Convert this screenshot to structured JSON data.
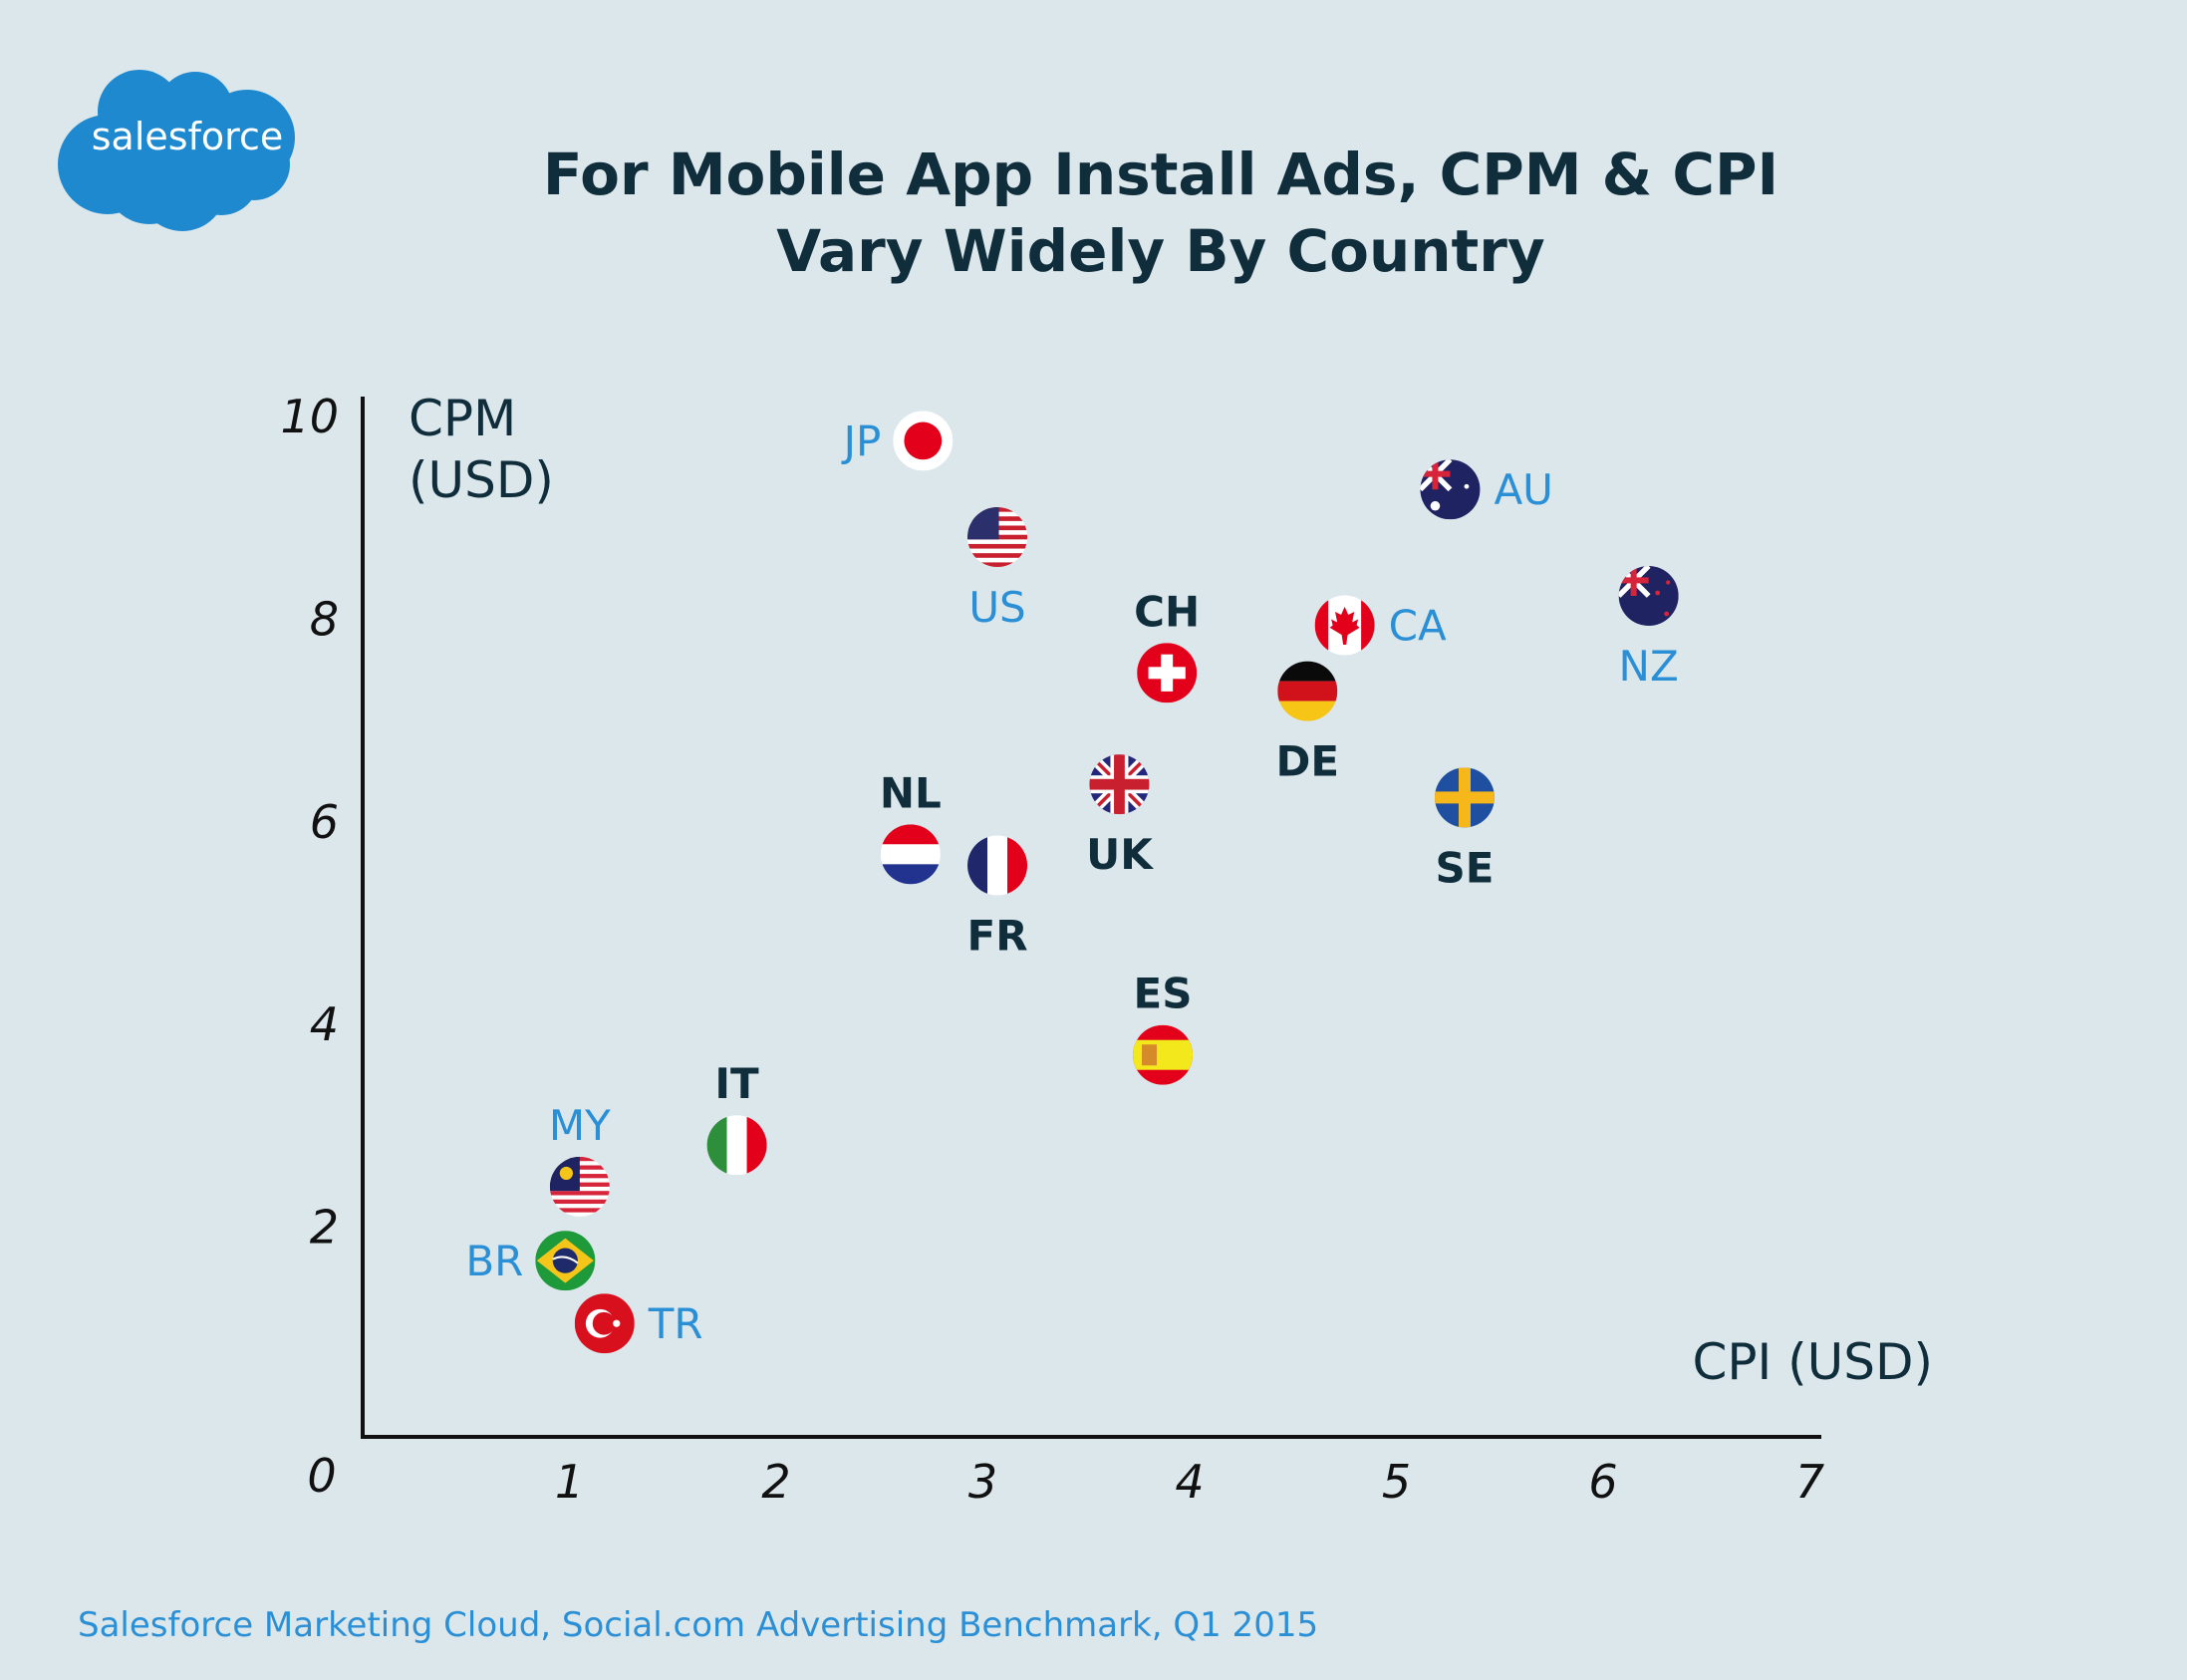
{
  "logo": {
    "text": "salesforce",
    "color": "#1f89cf"
  },
  "title": {
    "line1": "For Mobile App Install Ads, CPM & CPI",
    "line2": "Vary Widely By Country"
  },
  "footer": "Salesforce Marketing Cloud, Social.com Advertising Benchmark, Q1 2015",
  "colors": {
    "background": "#dce7ec",
    "title": "#0f2d3b",
    "axis": "#111111",
    "label_dark": "#0f2d3b",
    "label_blue": "#2b8fd6",
    "footer": "#2b8fd6"
  },
  "chart_data": {
    "type": "scatter",
    "title": "For Mobile App Install Ads, CPM & CPI Vary Widely By Country",
    "xlabel": "CPI (USD)",
    "ylabel_lines": [
      "CPM",
      "(USD)"
    ],
    "xlim": [
      0,
      7
    ],
    "ylim": [
      0,
      10
    ],
    "xticks": [
      "1",
      "2",
      "3",
      "4",
      "5",
      "6",
      "7"
    ],
    "yticks": [
      "2",
      "4",
      "6",
      "8",
      "10"
    ],
    "origin_label": "0",
    "grid": false,
    "points": [
      {
        "label": "JP",
        "cpi": 2.71,
        "cpm": 9.76,
        "flag": "japan-flag",
        "label_style": "blue",
        "label_pos": "left"
      },
      {
        "label": "US",
        "cpi": 3.07,
        "cpm": 8.81,
        "flag": "usa-flag",
        "label_style": "blue",
        "label_pos": "below"
      },
      {
        "label": "CH",
        "cpi": 3.89,
        "cpm": 7.47,
        "flag": "switzerland-flag",
        "label_style": "dark",
        "label_pos": "above"
      },
      {
        "label": "CA",
        "cpi": 4.75,
        "cpm": 7.94,
        "flag": "canada-flag",
        "label_style": "blue",
        "label_pos": "right"
      },
      {
        "label": "DE",
        "cpi": 4.57,
        "cpm": 7.29,
        "flag": "germany-flag",
        "label_style": "dark",
        "label_pos": "below"
      },
      {
        "label": "AU",
        "cpi": 5.26,
        "cpm": 9.28,
        "flag": "australia-flag",
        "label_style": "blue",
        "label_pos": "right"
      },
      {
        "label": "NZ",
        "cpi": 6.22,
        "cpm": 8.23,
        "flag": "new-zealand-flag",
        "label_style": "blue",
        "label_pos": "below"
      },
      {
        "label": "NL",
        "cpi": 2.65,
        "cpm": 5.68,
        "flag": "netherlands-flag",
        "label_style": "dark",
        "label_pos": "above"
      },
      {
        "label": "FR",
        "cpi": 3.07,
        "cpm": 5.57,
        "flag": "france-flag",
        "label_style": "dark",
        "label_pos": "below"
      },
      {
        "label": "UK",
        "cpi": 3.66,
        "cpm": 6.37,
        "flag": "uk-flag",
        "label_style": "dark",
        "label_pos": "below"
      },
      {
        "label": "SE",
        "cpi": 5.33,
        "cpm": 6.24,
        "flag": "sweden-flag",
        "label_style": "dark",
        "label_pos": "below"
      },
      {
        "label": "ES",
        "cpi": 3.87,
        "cpm": 3.7,
        "flag": "spain-flag",
        "label_style": "dark",
        "label_pos": "above"
      },
      {
        "label": "IT",
        "cpi": 1.81,
        "cpm": 2.81,
        "flag": "italy-flag",
        "label_style": "dark",
        "label_pos": "above"
      },
      {
        "label": "MY",
        "cpi": 1.05,
        "cpm": 2.4,
        "flag": "malaysia-flag",
        "label_style": "blue",
        "label_pos": "above"
      },
      {
        "label": "BR",
        "cpi": 0.98,
        "cpm": 1.67,
        "flag": "brazil-flag",
        "label_style": "blue",
        "label_pos": "left"
      },
      {
        "label": "TR",
        "cpi": 1.17,
        "cpm": 1.05,
        "flag": "turkey-flag",
        "label_style": "blue",
        "label_pos": "right"
      }
    ]
  }
}
